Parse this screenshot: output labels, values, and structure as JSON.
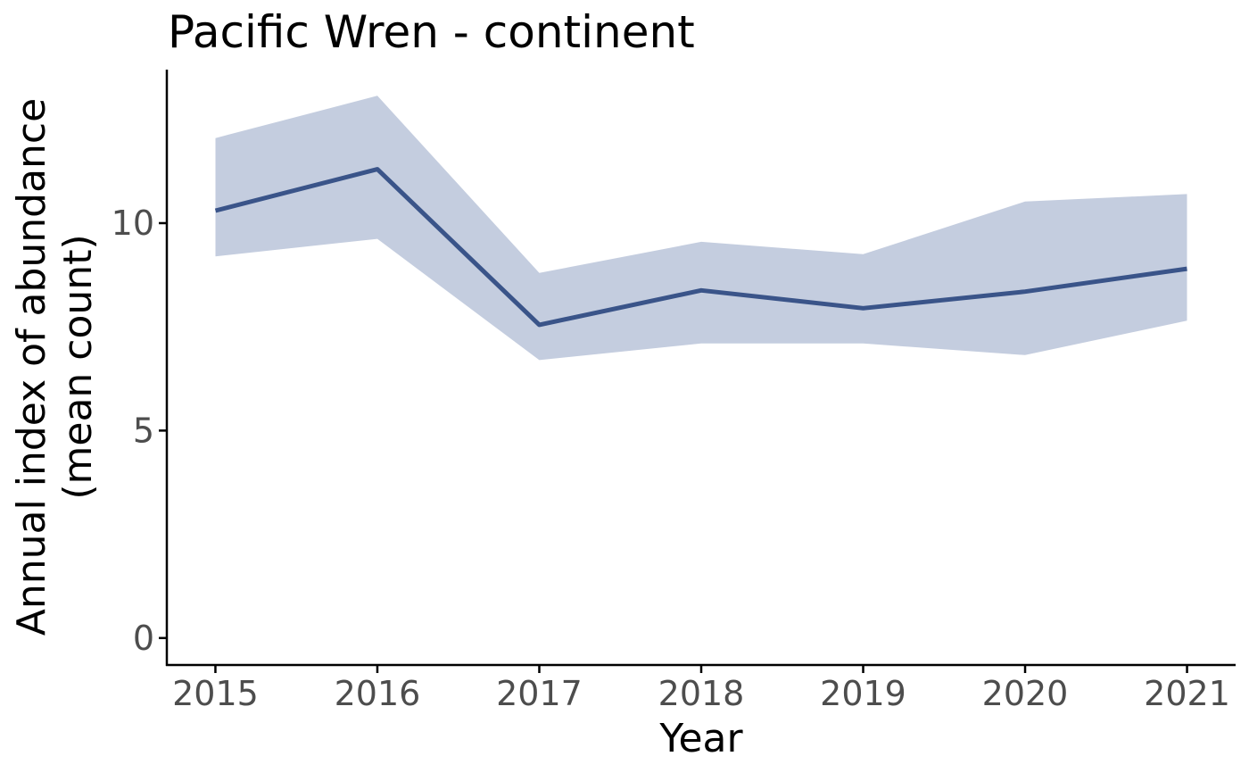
{
  "chart_data": {
    "type": "line",
    "title": "Pacific Wren - continent",
    "xlabel": "Year",
    "ylabel_lines": [
      "Annual index of abundance",
      "(mean count)"
    ],
    "x": [
      2015,
      2016,
      2017,
      2018,
      2019,
      2020,
      2021
    ],
    "x_ticks": [
      "2015",
      "2016",
      "2017",
      "2018",
      "2019",
      "2020",
      "2021"
    ],
    "y_ticks": [
      0,
      5,
      10
    ],
    "y_tick_labels": [
      "0",
      "5",
      "10"
    ],
    "xlim": [
      2014.7,
      2021.3
    ],
    "ylim": [
      -0.65,
      13.7
    ],
    "grid": false,
    "legend": false,
    "series": [
      {
        "values": [
          10.3,
          11.3,
          7.55,
          8.38,
          7.95,
          8.35,
          8.9
        ],
        "lower": [
          9.2,
          9.62,
          6.7,
          7.1,
          7.1,
          6.82,
          7.65
        ],
        "upper": [
          12.05,
          13.07,
          8.8,
          9.55,
          9.25,
          10.52,
          10.7
        ],
        "color": "#3a5489",
        "band_color": "#c4cddf"
      }
    ]
  }
}
